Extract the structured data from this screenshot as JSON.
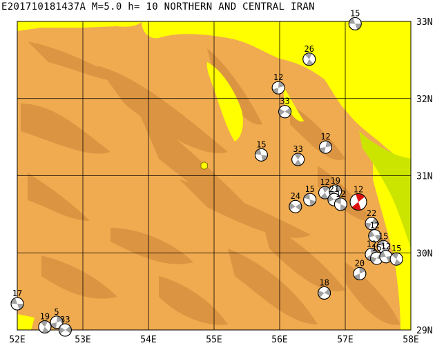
{
  "title": "E201710181437A M=5.0 h= 10 NORTHERN AND CENTRAL IRAN",
  "map": {
    "lon_range": [
      52,
      58
    ],
    "lat_range": [
      29,
      33
    ],
    "lon_ticks": [
      "52E",
      "53E",
      "54E",
      "55E",
      "56E",
      "57E",
      "58E"
    ],
    "lat_ticks": [
      "29N",
      "30N",
      "31N",
      "32N",
      "33N"
    ],
    "grid": true,
    "colors": {
      "land": "#f0ab50",
      "land_dark": "#d8913f",
      "low_yellow": "#ffff00",
      "green": "#cbe500",
      "grid": "#000000",
      "epicenter": "#ffff00",
      "event_compression": "#a0a0a0",
      "event_compression_main": "#dd1010"
    }
  },
  "epicenter": {
    "lon": 54.85,
    "lat": 31.13
  },
  "events": [
    {
      "lon": 57.15,
      "lat": 32.97,
      "depth": "15"
    },
    {
      "lon": 56.45,
      "lat": 32.51,
      "depth": "26"
    },
    {
      "lon": 55.98,
      "lat": 32.14,
      "depth": "12"
    },
    {
      "lon": 56.08,
      "lat": 31.83,
      "depth": "33"
    },
    {
      "lon": 55.72,
      "lat": 31.27,
      "depth": "15"
    },
    {
      "lon": 56.28,
      "lat": 31.21,
      "depth": "33"
    },
    {
      "lon": 56.7,
      "lat": 31.37,
      "depth": "12"
    },
    {
      "lon": 56.24,
      "lat": 30.6,
      "depth": "24"
    },
    {
      "lon": 56.46,
      "lat": 30.69,
      "depth": "15"
    },
    {
      "lon": 56.69,
      "lat": 30.78,
      "depth": "12"
    },
    {
      "lon": 56.85,
      "lat": 30.8,
      "depth": "19"
    },
    {
      "lon": 56.83,
      "lat": 30.69,
      "depth": "21"
    },
    {
      "lon": 56.93,
      "lat": 30.63,
      "depth": "12"
    },
    {
      "lon": 57.2,
      "lat": 30.66,
      "depth": "12",
      "main": true
    },
    {
      "lon": 57.4,
      "lat": 30.38,
      "depth": "22"
    },
    {
      "lon": 57.45,
      "lat": 30.22,
      "depth": "12"
    },
    {
      "lon": 57.58,
      "lat": 30.08,
      "depth": "15"
    },
    {
      "lon": 57.4,
      "lat": 29.98,
      "depth": "12"
    },
    {
      "lon": 57.48,
      "lat": 29.93,
      "depth": "15"
    },
    {
      "lon": 57.62,
      "lat": 29.95,
      "depth": "12"
    },
    {
      "lon": 57.78,
      "lat": 29.92,
      "depth": "15"
    },
    {
      "lon": 57.22,
      "lat": 29.73,
      "depth": "20"
    },
    {
      "lon": 56.68,
      "lat": 29.48,
      "depth": "18"
    },
    {
      "lon": 52.0,
      "lat": 29.34,
      "depth": "17"
    },
    {
      "lon": 52.42,
      "lat": 29.04,
      "depth": "19"
    },
    {
      "lon": 52.6,
      "lat": 29.1,
      "depth": "5"
    },
    {
      "lon": 52.73,
      "lat": 29.0,
      "depth": "33"
    }
  ]
}
